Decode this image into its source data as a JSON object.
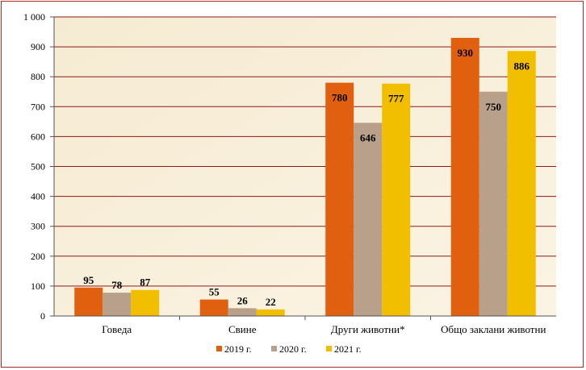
{
  "chart_data": {
    "type": "bar",
    "title": "",
    "xlabel": "",
    "ylabel": "",
    "categories": [
      "Говеда",
      "Свине",
      "Други животни*",
      "Общо заклани животни"
    ],
    "series": [
      {
        "name": "2019 г.",
        "color": "#e06010",
        "values": [
          95,
          55,
          780,
          930
        ]
      },
      {
        "name": "2020 г.",
        "color": "#b8a08a",
        "values": [
          78,
          26,
          646,
          750
        ]
      },
      {
        "name": "2021 г.",
        "color": "#f2bf00",
        "values": [
          87,
          22,
          777,
          886
        ]
      }
    ],
    "ylim": [
      0,
      1000
    ],
    "yticks": [
      0,
      100,
      200,
      300,
      400,
      500,
      600,
      700,
      800,
      900,
      1000
    ],
    "ytick_labels": [
      "0",
      "100",
      "200",
      "300",
      "400",
      "500",
      "600",
      "700",
      "800",
      "900",
      "1 000"
    ],
    "grid": true,
    "legend_position": "bottom",
    "data_label_position": [
      "above",
      "above",
      "inside-top",
      "inside-top"
    ]
  }
}
